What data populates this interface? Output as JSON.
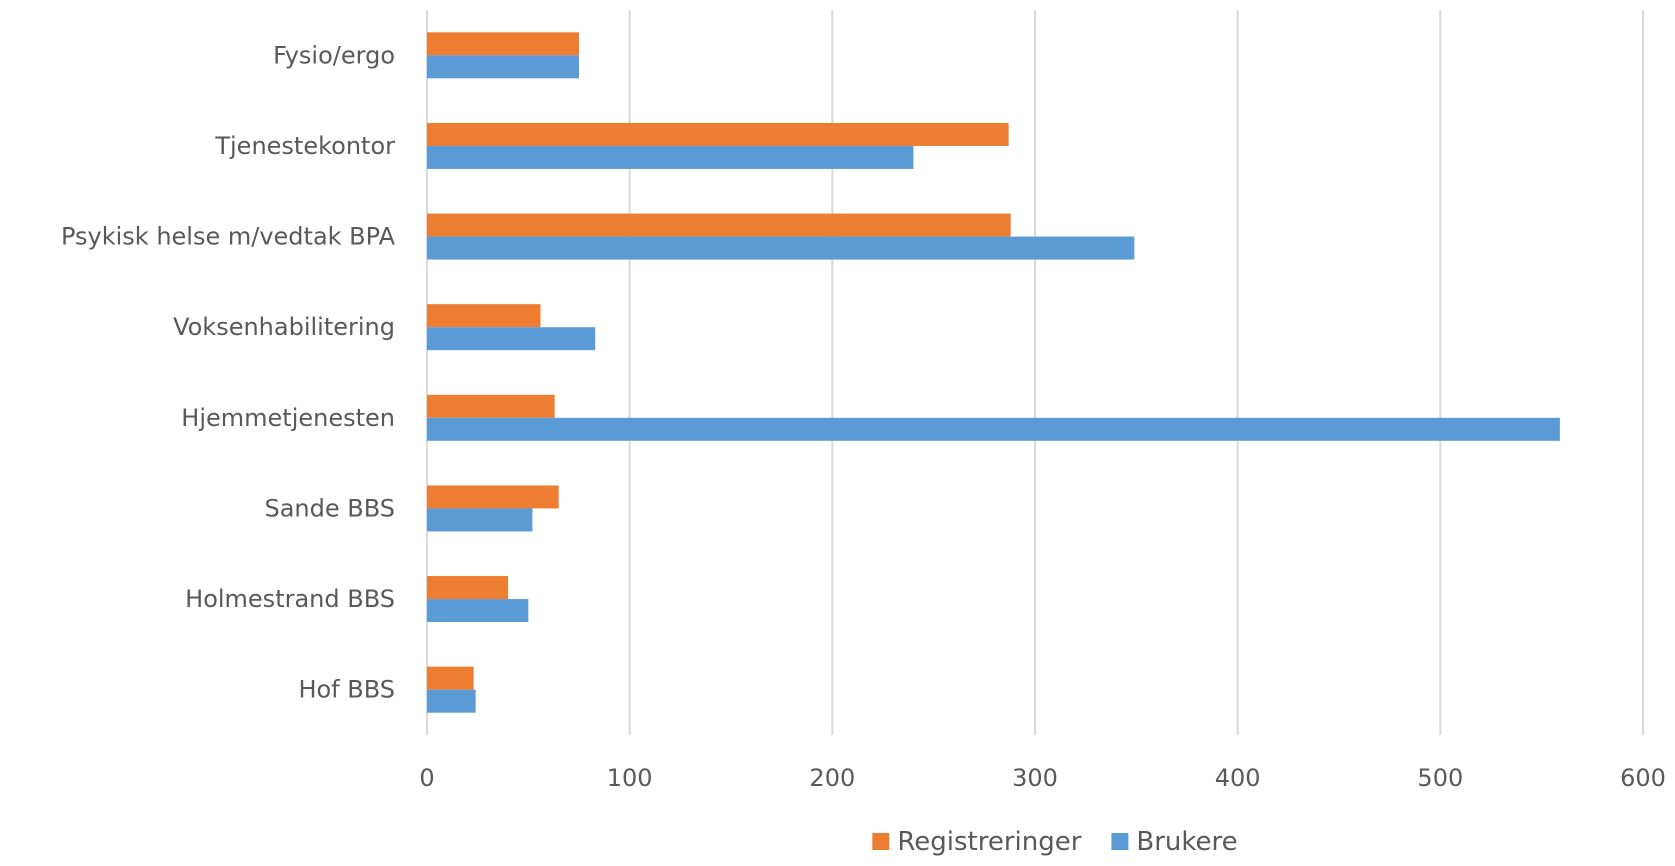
{
  "chart_data": {
    "type": "bar",
    "orientation": "horizontal",
    "categories": [
      "Fysio/ergo",
      "Tjenestekontor",
      "Psykisk helse m/vedtak BPA",
      "Voksenhabilitering",
      "Hjemmetjenesten",
      "Sande BBS",
      "Holmestrand BBS",
      "Hof BBS"
    ],
    "series": [
      {
        "name": "Registreringer",
        "color": "#ed7d31",
        "values": [
          75,
          287,
          288,
          56,
          63,
          65,
          40,
          23
        ]
      },
      {
        "name": "Brukere",
        "color": "#5b9bd5",
        "values": [
          75,
          240,
          349,
          83,
          559,
          52,
          50,
          24
        ]
      }
    ],
    "xlim": [
      0,
      600
    ],
    "xticks": [
      0,
      100,
      200,
      300,
      400,
      500,
      600
    ],
    "title": "",
    "xlabel": "",
    "ylabel": "",
    "grid": "vertical",
    "legend_position": "bottom"
  }
}
